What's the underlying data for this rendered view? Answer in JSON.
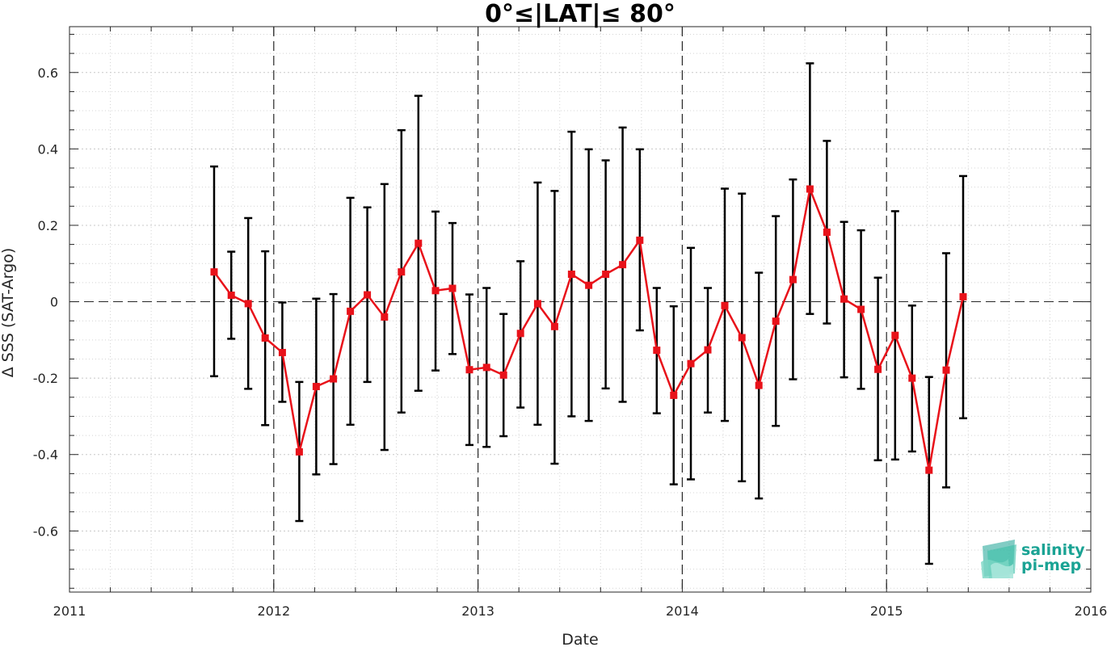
{
  "chart_data": {
    "type": "line",
    "title": "0°≤|LAT|≤ 80°",
    "xlabel": "Date",
    "ylabel": "Δ SSS (SAT-Argo)",
    "xlim": [
      2011,
      2016
    ],
    "ylim": [
      -0.76,
      0.72
    ],
    "x_ticks": [
      "2011",
      "2012",
      "2013",
      "2014",
      "2015",
      "2016"
    ],
    "y_ticks": [
      "-0.6",
      "-0.4",
      "-0.2",
      "0",
      "0.2",
      "0.4",
      "0.6"
    ],
    "grid": true,
    "series": [
      {
        "color": "#e8121a",
        "error_bar_color": "#000000",
        "x": [
          2011.708,
          2011.792,
          2011.875,
          2011.958,
          2012.042,
          2012.125,
          2012.208,
          2012.292,
          2012.375,
          2012.458,
          2012.542,
          2012.625,
          2012.708,
          2012.792,
          2012.875,
          2012.958,
          2013.042,
          2013.125,
          2013.208,
          2013.292,
          2013.375,
          2013.458,
          2013.542,
          2013.625,
          2013.708,
          2013.792,
          2013.875,
          2013.958,
          2014.042,
          2014.125,
          2014.208,
          2014.292,
          2014.375,
          2014.458,
          2014.542,
          2014.625,
          2014.708,
          2014.792,
          2014.875,
          2014.958,
          2015.042,
          2015.125,
          2015.208,
          2015.292,
          2015.375
        ],
        "y": [
          0.078,
          0.017,
          -0.005,
          -0.095,
          -0.133,
          -0.393,
          -0.222,
          -0.202,
          -0.025,
          0.018,
          -0.04,
          0.078,
          0.153,
          0.029,
          0.035,
          -0.178,
          -0.172,
          -0.192,
          -0.083,
          -0.005,
          -0.065,
          0.072,
          0.043,
          0.072,
          0.097,
          0.161,
          -0.127,
          -0.245,
          -0.162,
          -0.126,
          -0.01,
          -0.094,
          -0.219,
          -0.051,
          0.058,
          0.295,
          0.182,
          0.007,
          -0.02,
          -0.177,
          -0.088,
          -0.2,
          -0.441,
          -0.179,
          0.013
        ],
        "err_low": [
          -0.195,
          -0.097,
          -0.228,
          -0.323,
          -0.262,
          -0.574,
          -0.452,
          -0.425,
          -0.322,
          -0.21,
          -0.388,
          -0.29,
          -0.233,
          -0.18,
          -0.137,
          -0.375,
          -0.38,
          -0.352,
          -0.277,
          -0.322,
          -0.424,
          -0.3,
          -0.312,
          -0.227,
          -0.262,
          -0.075,
          -0.292,
          -0.478,
          -0.465,
          -0.29,
          -0.312,
          -0.47,
          -0.515,
          -0.325,
          -0.203,
          -0.032,
          -0.057,
          -0.198,
          -0.228,
          -0.415,
          -0.413,
          -0.392,
          -0.686,
          -0.486,
          -0.305
        ],
        "err_high": [
          0.354,
          0.131,
          0.219,
          0.132,
          -0.002,
          -0.21,
          0.008,
          0.02,
          0.272,
          0.247,
          0.308,
          0.449,
          0.539,
          0.236,
          0.206,
          0.019,
          0.036,
          -0.032,
          0.106,
          0.312,
          0.29,
          0.445,
          0.399,
          0.37,
          0.456,
          0.399,
          0.036,
          -0.012,
          0.141,
          0.036,
          0.296,
          0.283,
          0.076,
          0.224,
          0.32,
          0.624,
          0.421,
          0.209,
          0.187,
          0.063,
          0.237,
          -0.01,
          -0.197,
          0.127,
          0.329
        ]
      }
    ]
  },
  "logo": {
    "line1": "salinity",
    "line2": "pi-mep",
    "color": "#1aa394"
  }
}
